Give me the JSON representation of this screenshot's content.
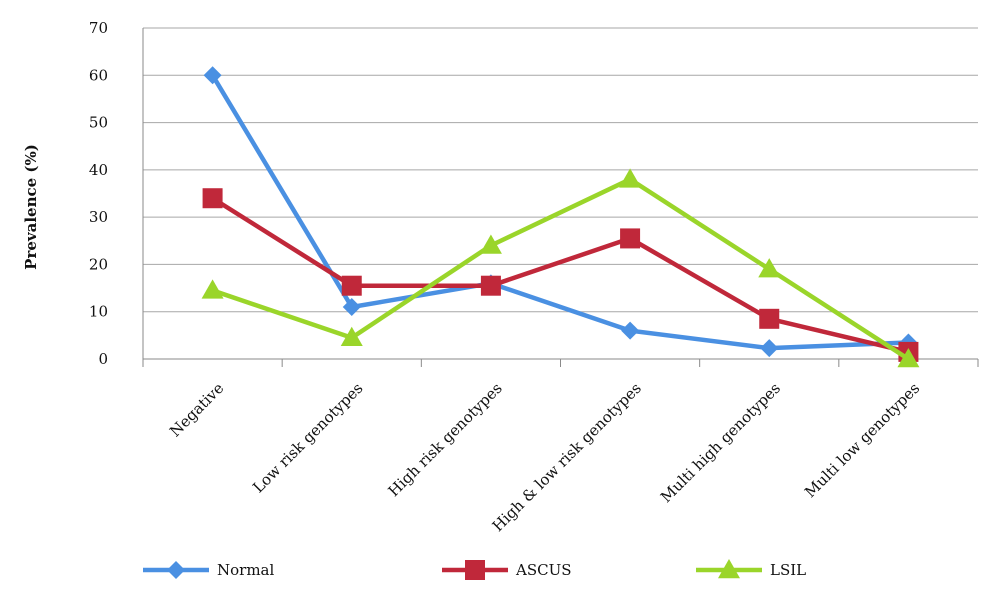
{
  "chart_data": {
    "type": "line",
    "title": "",
    "xlabel": "",
    "ylabel": "Prevalence (%)",
    "ylim": [
      0,
      70
    ],
    "yticks": [
      0,
      10,
      20,
      30,
      40,
      50,
      60,
      70
    ],
    "grid": true,
    "legend_position": "bottom",
    "categories": [
      "Negative",
      "Low risk genotypes",
      "High risk genotypes",
      "High & low risk genotypes",
      "Multi high genotypes",
      "Multi low genotypes"
    ],
    "series": [
      {
        "name": "Normal",
        "color": "#4a90e2",
        "marker": "diamond",
        "values": [
          60,
          11,
          16,
          6,
          2.3,
          3.5
        ]
      },
      {
        "name": "ASCUS",
        "color": "#c0283a",
        "marker": "square",
        "values": [
          34,
          15.5,
          15.5,
          25.5,
          8.5,
          1.5
        ]
      },
      {
        "name": "LSIL",
        "color": "#9ad52a",
        "marker": "triangle",
        "values": [
          14.5,
          4.5,
          24,
          38,
          19,
          0
        ]
      }
    ]
  }
}
